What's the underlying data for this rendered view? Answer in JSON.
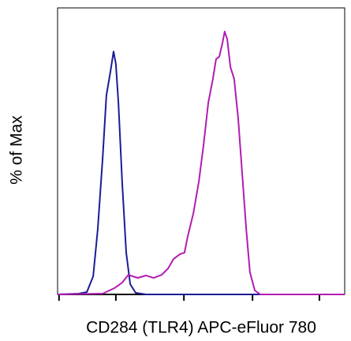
{
  "chart_data": {
    "type": "line",
    "xlabel": "CD284 (TLR4) APC-eFluor 780",
    "ylabel": "% of Max",
    "xlim": [
      0,
      100
    ],
    "ylim": [
      0,
      109
    ],
    "xticks": [
      0.5,
      20.3,
      44.0,
      67.9,
      91.2
    ],
    "series": [
      {
        "color": "#1c1c96",
        "x": [
          0,
          7.4,
          10.2,
          12.4,
          14.0,
          15.7,
          17.0,
          18.4,
          19.5,
          20.3,
          21.2,
          22.5,
          23.9,
          25.3,
          27.2,
          30.8,
          100
        ],
        "values": [
          0,
          0.3,
          0.9,
          6.9,
          24.9,
          51.9,
          75.7,
          84.7,
          92.4,
          87.7,
          72.7,
          42.6,
          15.9,
          3.9,
          0.6,
          0,
          0
        ]
      },
      {
        "color": "#b21cb2",
        "x": [
          0,
          15.7,
          19.8,
          22.5,
          24.7,
          26.1,
          28.0,
          30.8,
          33.5,
          36.3,
          38.5,
          40.4,
          42.6,
          44.2,
          45.3,
          47.3,
          49.2,
          50.8,
          52.5,
          54.1,
          55.2,
          56.3,
          57.4,
          58.2,
          59.1,
          60.2,
          61.5,
          62.9,
          64.3,
          65.7,
          67.0,
          68.7,
          70.6,
          100
        ],
        "values": [
          0,
          0.3,
          2.4,
          4.5,
          7.5,
          6.9,
          6.3,
          7.2,
          6.3,
          7.5,
          9.9,
          13.5,
          15.3,
          15.9,
          21.9,
          30.9,
          42.9,
          56.5,
          73.0,
          82.0,
          89.5,
          90.4,
          95.5,
          100,
          97.0,
          86.5,
          82.0,
          67.0,
          45.9,
          24.9,
          8.4,
          1.5,
          0,
          0
        ]
      }
    ]
  }
}
